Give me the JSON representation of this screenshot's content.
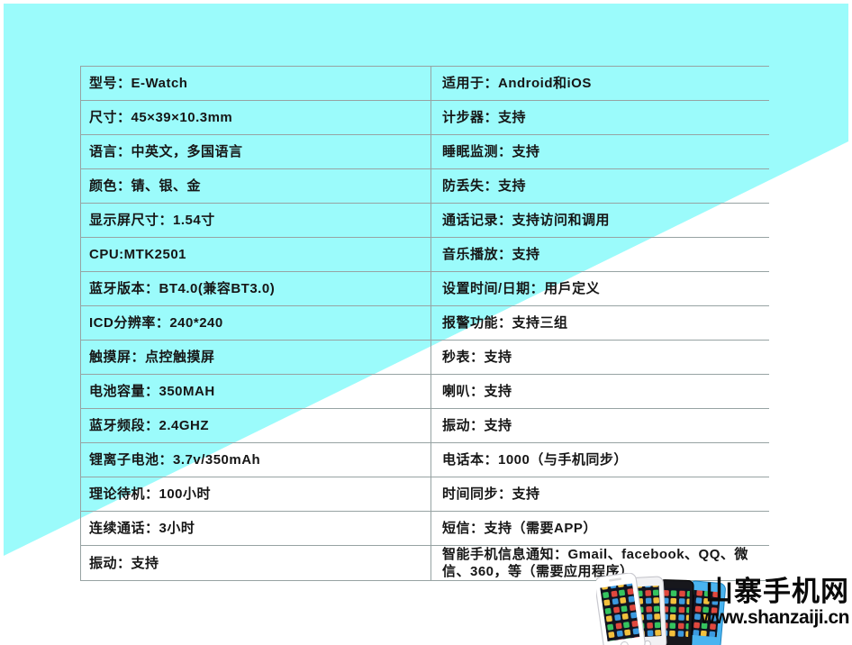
{
  "colors": {
    "background": "#9BFBFB",
    "grid_line": "#97a3a3",
    "text": "#161616",
    "watermark_text": "#0a0a0a"
  },
  "table": {
    "left_rows": [
      "型号：E-Watch",
      "尺寸：45×39×10.3mm",
      "语言：中英文，多国语言",
      "颜色：锖、银、金",
      "显示屏尺寸：1.54寸",
      "CPU:MTK2501",
      "蓝牙版本：BT4.0(兼容BT3.0)",
      "ICD分辨率：240*240",
      "触摸屏：点控触摸屏",
      "电池容量：350MAH",
      "蓝牙频段：2.4GHZ",
      "锂离子电池：3.7v/350mAh",
      "理论待机：100小时",
      "连续通话：3小时",
      "振动：支持"
    ],
    "right_rows": [
      "适用于：Android和iOS",
      "计步器：支持",
      "睡眠监测：支持",
      "防丢失：支持",
      "通话记录：支持访问和调用",
      "音乐播放：支持",
      "设置时间/日期：用戶定义",
      "报警功能：支持三组",
      "秒表：支持",
      "喇叭：支持",
      "振动：支持",
      "电话本：1000（与手机同步）",
      "时间同步：支持",
      "短信：支持（需要APP）",
      "智能手机信息通知：Gmail、facebook、QQ、微信、360，等（需要应用程序）"
    ]
  },
  "watermark": {
    "site_name": "山寨手机网",
    "site_url": "www.shanzaiji.cn",
    "phones_icon": "smartphones-cluster"
  }
}
